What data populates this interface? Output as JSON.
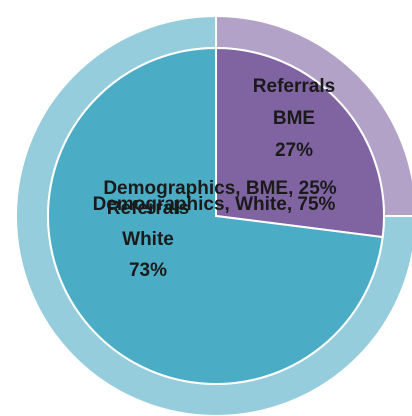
{
  "chart_data": {
    "type": "pie",
    "variant": "nested-doughnut",
    "start_angle_deg": 0,
    "direction": "clockwise",
    "rings": [
      {
        "name": "Demographics",
        "position": "outer",
        "slices": [
          {
            "category": "BME",
            "value": 25,
            "color": "#b3a2c8",
            "label": "Demographics, BME, 25%",
            "label_lines": [
              "Demographics, BME, 25%"
            ]
          },
          {
            "category": "White",
            "value": 75,
            "color": "#96cddc",
            "label": "Demographics, White, 75%",
            "label_lines": [
              "Demographics, White, 75%"
            ]
          }
        ]
      },
      {
        "name": "Referrals",
        "position": "inner",
        "slices": [
          {
            "category": "BME",
            "value": 27,
            "color": "#8064a2",
            "label": "Referrals BME 27%",
            "label_lines": [
              "Referrals",
              "BME",
              "27%"
            ]
          },
          {
            "category": "White",
            "value": 73,
            "color": "#4bacc6",
            "label": "Referrals White 73%",
            "label_lines": [
              "Referrals",
              "White",
              "73%"
            ]
          }
        ]
      }
    ],
    "title": "",
    "legend": "none"
  }
}
